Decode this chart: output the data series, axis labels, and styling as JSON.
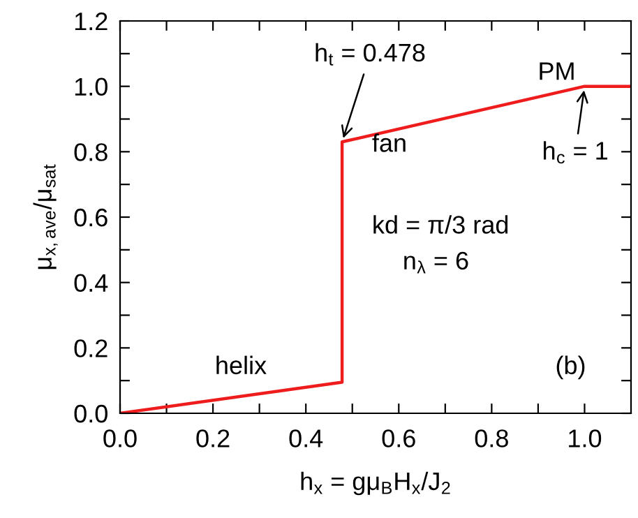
{
  "chart_data": {
    "type": "line",
    "xlabel": "h$_{x}$ = gμ$_{B}$H$_{x}$/J$_{2}$",
    "ylabel": "μ$_{x,ave}$/μ$_{sat}$",
    "x": [
      0,
      0.478,
      0.478,
      1,
      1.1
    ],
    "series": [
      {
        "color": "#ee1c1c",
        "values": [
          0,
          0.095,
          0.83,
          1,
          1
        ]
      }
    ],
    "xlim": [
      0,
      1.1
    ],
    "ylim": [
      0,
      1.2
    ],
    "xticks": [
      {
        "value": 0.0,
        "label": "0.0"
      },
      {
        "value": 0.1,
        "label": null
      },
      0.2,
      {
        "value": 0.3,
        "label": null
      },
      0.4,
      {
        "value": 0.5,
        "label": null
      },
      0.6,
      {
        "value": 0.7,
        "label": null
      },
      0.8,
      {
        "value": 0.9,
        "label": null
      },
      {
        "value": 1.0,
        "label": "1.0"
      }
    ],
    "yticks": [
      {
        "value": 0.0,
        "label": "0.0"
      },
      {
        "value": 0.1,
        "label": null
      },
      0.2,
      {
        "value": 0.3,
        "label": null
      },
      0.4,
      {
        "value": 0.5,
        "label": null
      },
      0.6,
      {
        "value": 0.7,
        "label": null
      },
      0.8,
      {
        "value": 0.9,
        "label": null
      },
      {
        "value": 1.0,
        "label": "1.0"
      },
      {
        "value": 1.1,
        "label": null
      },
      1.2
    ],
    "grid": false,
    "legend": false,
    "marker": "none",
    "line_style": "solid",
    "annotations": [
      {
        "text": "h$_{t}$ = 0.478",
        "x": 0.478,
        "y": 0.83
      },
      {
        "text": "h$_{c}$ = 1",
        "x": 1,
        "y": 1
      },
      "helix",
      "fan",
      "PM",
      "kd = π/3 rad",
      "n$_{λ}$ = 6",
      "(b)"
    ]
  }
}
